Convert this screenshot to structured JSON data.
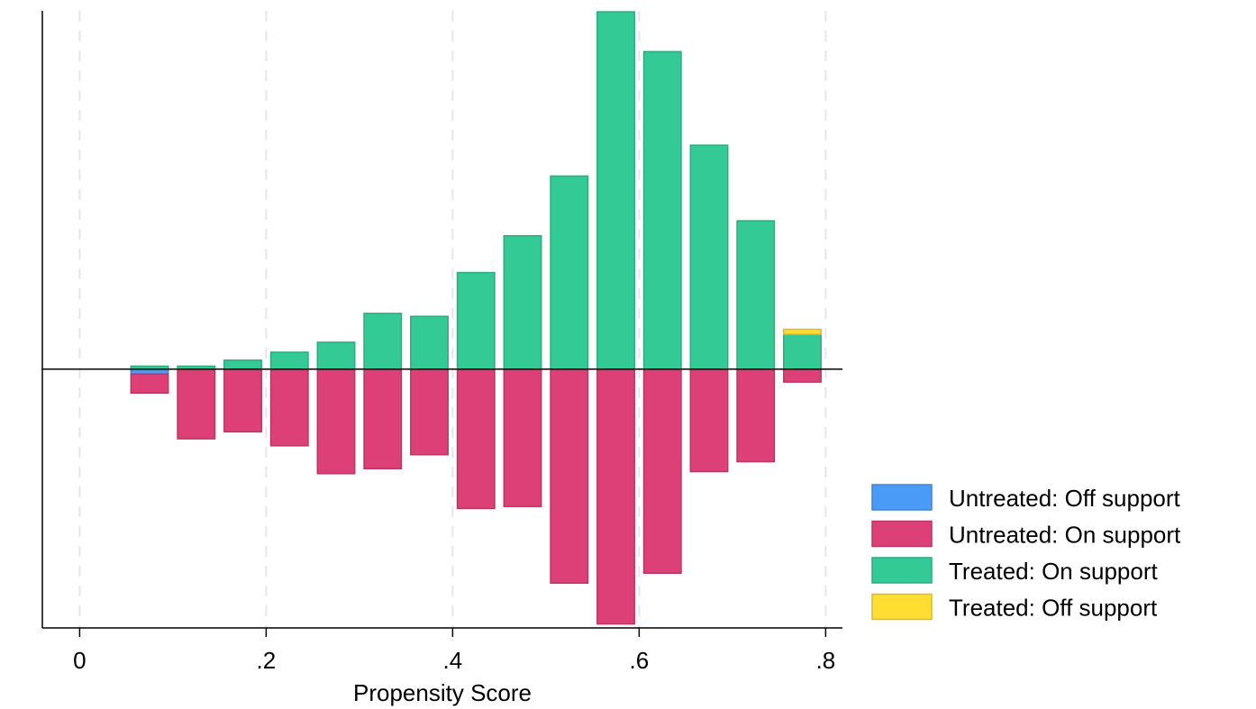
{
  "chart_data": {
    "type": "bar",
    "xlabel": "Propensity Score",
    "ylabel": "",
    "xlim": [
      -0.04,
      0.818
    ],
    "ylim": [
      -0.13,
      0.18
    ],
    "xticks": [
      0,
      0.2,
      0.4,
      0.6,
      0.8
    ],
    "xtick_labels": [
      "0",
      ".2",
      ".4",
      ".6",
      ".8"
    ],
    "grid": "vertical dashed at x ticks",
    "legend_position": "right",
    "bin_centers": [
      0.075,
      0.125,
      0.175,
      0.225,
      0.275,
      0.325,
      0.375,
      0.425,
      0.475,
      0.525,
      0.575,
      0.625,
      0.675,
      0.725,
      0.775
    ],
    "bar_width": 0.04,
    "series": [
      {
        "name": "Untreated: Off support",
        "color": "#4a9bf7",
        "direction": "down",
        "values": [
          0.0025,
          0,
          0,
          0,
          0,
          0,
          0,
          0,
          0,
          0,
          0,
          0,
          0,
          0,
          0
        ]
      },
      {
        "name": "Untreated: On support",
        "color": "#dc4077",
        "direction": "down",
        "values": [
          0.0095,
          0.035,
          0.0315,
          0.0385,
          0.0525,
          0.05,
          0.043,
          0.07,
          0.069,
          0.1075,
          0.128,
          0.1025,
          0.0515,
          0.0465,
          0.0065
        ]
      },
      {
        "name": "Treated: On support",
        "color": "#33ca96",
        "direction": "up",
        "values": [
          0.0015,
          0.0015,
          0.0045,
          0.0085,
          0.0135,
          0.028,
          0.0265,
          0.0485,
          0.067,
          0.097,
          0.1795,
          0.1595,
          0.1125,
          0.0745,
          0.0175
        ]
      },
      {
        "name": "Treated: Off support",
        "color": "#ffdd33",
        "direction": "up",
        "values": [
          0,
          0,
          0,
          0,
          0,
          0,
          0,
          0,
          0,
          0,
          0,
          0,
          0,
          0,
          0.0025
        ]
      }
    ]
  }
}
